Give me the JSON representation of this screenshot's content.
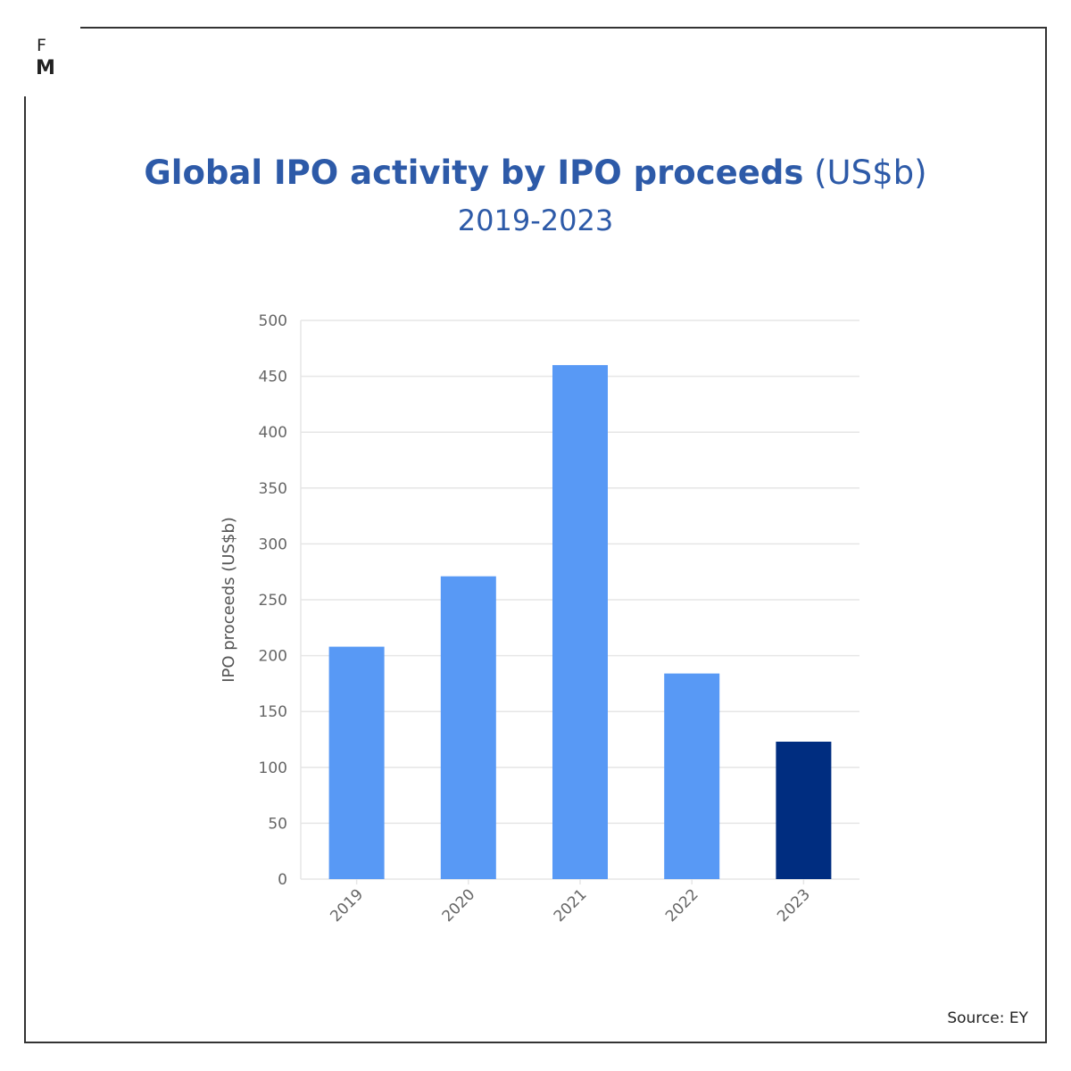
{
  "logo": {
    "top": "F",
    "bottom": "M"
  },
  "title": {
    "bold": "Global IPO activity by IPO proceeds",
    "unit": "(US$b)"
  },
  "subtitle": "2019-2023",
  "source": "Source: EY",
  "colors": {
    "bar": "#5899f5",
    "highlight": "#002d80",
    "title": "#2d5aa8",
    "grid": "#e6e6e6",
    "tick": "#666666"
  },
  "chart_data": {
    "type": "bar",
    "categories": [
      "2019",
      "2020",
      "2021",
      "2022",
      "2023"
    ],
    "values": [
      208,
      271,
      460,
      184,
      123
    ],
    "highlight": "2023",
    "xlabel": "",
    "ylabel": "IPO proceeds (US$b)",
    "ylim": [
      0,
      500
    ],
    "yticks": [
      0,
      50,
      100,
      150,
      200,
      250,
      300,
      350,
      400,
      450,
      500
    ],
    "grid": true,
    "legend": "none"
  }
}
